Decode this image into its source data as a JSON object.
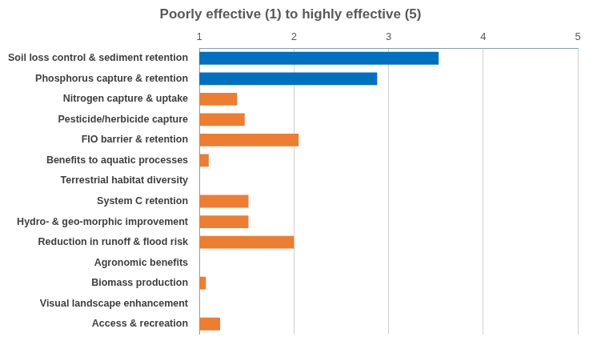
{
  "chart_data": {
    "type": "bar",
    "orientation": "horizontal",
    "title": "Poorly effective (1) to highly effective (5)",
    "categories": [
      "Soil loss control & sediment retention",
      "Phosphorus capture & retention",
      "Nitrogen capture & uptake",
      "Pesticide/herbicide capture",
      "FIO barrier & retention",
      "Benefits to aquatic processes",
      "Terrestrial habitat diversity",
      "System C retention",
      "Hydro- & geo-morphic improvement",
      "Reduction in runoff & flood risk",
      "Agronomic benefits",
      "Biomass production",
      "Visual landscape enhancement",
      "Access & recreation"
    ],
    "values": [
      3.53,
      2.88,
      1.4,
      1.48,
      2.05,
      1.1,
      1,
      1.52,
      1.52,
      2.0,
      1,
      1.07,
      1,
      1.22
    ],
    "colors": [
      "#0070c0",
      "#0070c0",
      "#ed7d31",
      "#ed7d31",
      "#ed7d31",
      "#ed7d31",
      "#ed7d31",
      "#ed7d31",
      "#ed7d31",
      "#ed7d31",
      "#ed7d31",
      "#ed7d31",
      "#ed7d31",
      "#ed7d31"
    ],
    "xlim": [
      1,
      5
    ],
    "xticks": [
      1,
      2,
      3,
      4,
      5
    ],
    "grid": true
  }
}
